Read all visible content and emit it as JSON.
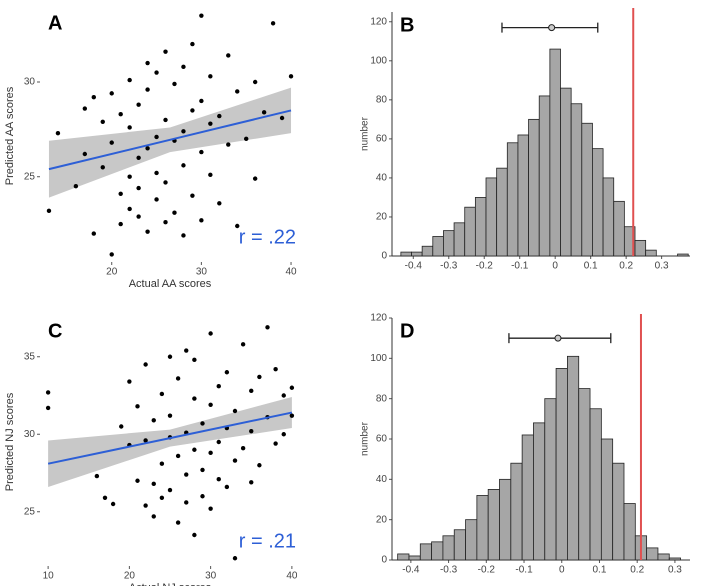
{
  "chart_data": [
    {
      "type": "scatter",
      "label": "A",
      "xlabel": "Actual AA scores",
      "ylabel": "Predicted AA scores",
      "annotation": "r = .22",
      "color": "#000000",
      "fit_color": "#2d5fd6",
      "band_color": "#c8c8c8",
      "x": [
        13,
        14,
        16,
        17,
        17,
        18,
        18,
        19,
        19,
        20,
        20,
        20,
        21,
        21,
        21,
        22,
        22,
        22,
        22,
        23,
        23,
        23,
        23,
        24,
        24,
        24,
        24,
        25,
        25,
        25,
        25,
        26,
        26,
        26,
        26,
        27,
        27,
        27,
        28,
        28,
        28,
        28,
        29,
        29,
        29,
        30,
        30,
        30,
        30,
        31,
        31,
        31,
        32,
        32,
        33,
        33,
        34,
        34,
        35,
        36,
        36,
        37,
        38,
        39,
        40
      ],
      "y": [
        23.2,
        27.3,
        24.5,
        26.2,
        28.6,
        22.0,
        29.2,
        25.5,
        27.9,
        20.9,
        26.8,
        29.4,
        24.1,
        28.3,
        22.5,
        25.0,
        27.6,
        23.3,
        30.1,
        26.0,
        28.8,
        22.9,
        24.4,
        31.0,
        26.5,
        22.1,
        29.6,
        23.8,
        27.1,
        30.5,
        25.2,
        28.0,
        22.6,
        31.6,
        24.7,
        26.9,
        29.9,
        23.1,
        27.4,
        30.8,
        25.6,
        21.9,
        28.5,
        24.0,
        32.0,
        26.3,
        29.0,
        22.7,
        33.5,
        27.8,
        25.1,
        30.3,
        28.2,
        23.6,
        31.4,
        26.7,
        29.5,
        22.4,
        27.0,
        30.0,
        24.9,
        28.4,
        33.1,
        28.1,
        30.3
      ],
      "fit": {
        "x": [
          13,
          26.5,
          40
        ],
        "y": [
          25.4,
          26.95,
          28.5
        ],
        "lower": [
          23.9,
          26.3,
          27.3
        ],
        "upper": [
          26.9,
          27.6,
          29.7
        ]
      },
      "xlim": [
        12,
        41
      ],
      "ylim": [
        20.5,
        33.8
      ],
      "xticks": [
        20,
        30,
        40
      ],
      "yticks": [
        25,
        30
      ]
    },
    {
      "type": "histogram",
      "label": "B",
      "ylabel": "number",
      "color": "#a6a6a6",
      "bins": [
        -0.435,
        -0.405,
        -0.375,
        -0.345,
        -0.315,
        -0.285,
        -0.255,
        -0.225,
        -0.195,
        -0.165,
        -0.135,
        -0.105,
        -0.075,
        -0.045,
        -0.015,
        0.015,
        0.045,
        0.075,
        0.105,
        0.135,
        0.165,
        0.195,
        0.225,
        0.255,
        0.285,
        0.315,
        0.345,
        0.375
      ],
      "counts": [
        2,
        2,
        5,
        10,
        13,
        17,
        25,
        30,
        40,
        45,
        58,
        62,
        70,
        82,
        106,
        86,
        78,
        68,
        55,
        40,
        28,
        15,
        8,
        3,
        0,
        0,
        1
      ],
      "vline": 0.22,
      "vline_color": "#e05050",
      "errorbar": {
        "center": -0.01,
        "low": -0.15,
        "high": 0.12,
        "y": 117
      },
      "xlim": [
        -0.46,
        0.38
      ],
      "ylim": [
        0,
        125
      ],
      "xticks": [
        -0.4,
        -0.3,
        -0.2,
        -0.1,
        0,
        0.1,
        0.2,
        0.3
      ],
      "yticks": [
        0,
        20,
        40,
        60,
        80,
        100,
        120
      ]
    },
    {
      "type": "scatter",
      "label": "C",
      "xlabel": "Actual NJ scores",
      "ylabel": "Predicted NJ scores",
      "annotation": "r = .21",
      "color": "#000000",
      "fit_color": "#2d5fd6",
      "band_color": "#c8c8c8",
      "x": [
        10,
        10,
        16,
        17,
        18,
        19,
        20,
        20,
        21,
        21,
        22,
        22,
        22,
        23,
        23,
        23,
        24,
        24,
        24,
        25,
        25,
        25,
        25,
        26,
        26,
        26,
        27,
        27,
        27,
        27,
        28,
        28,
        28,
        28,
        29,
        29,
        29,
        30,
        30,
        30,
        30,
        31,
        31,
        31,
        32,
        32,
        32,
        33,
        33,
        33,
        34,
        34,
        35,
        35,
        35,
        36,
        36,
        37,
        37,
        38,
        38,
        39,
        39,
        40,
        40
      ],
      "y": [
        32.7,
        31.7,
        27.3,
        25.9,
        25.5,
        30.5,
        29.3,
        33.4,
        27.0,
        31.8,
        25.4,
        29.6,
        34.5,
        26.8,
        30.9,
        24.7,
        28.1,
        32.6,
        25.9,
        29.8,
        35.0,
        26.4,
        31.2,
        28.6,
        33.6,
        24.3,
        30.1,
        27.4,
        35.4,
        25.6,
        29.0,
        32.3,
        23.5,
        34.8,
        27.7,
        30.7,
        26.0,
        36.5,
        28.8,
        31.9,
        25.2,
        33.1,
        29.5,
        27.1,
        34.0,
        30.4,
        26.6,
        22.0,
        31.5,
        28.3,
        35.8,
        29.1,
        32.8,
        26.9,
        30.2,
        33.7,
        28.0,
        36.9,
        31.1,
        29.4,
        34.2,
        32.5,
        30.0,
        33.0,
        31.2
      ],
      "fit": {
        "x": [
          10,
          25,
          40
        ],
        "y": [
          28.1,
          29.75,
          31.4
        ],
        "lower": [
          26.6,
          29.2,
          30.4
        ],
        "upper": [
          29.6,
          30.3,
          32.4
        ]
      },
      "xlim": [
        9,
        41
      ],
      "ylim": [
        21.5,
        37.5
      ],
      "xticks": [
        10,
        20,
        30,
        40
      ],
      "yticks": [
        25,
        30,
        35
      ]
    },
    {
      "type": "histogram",
      "label": "D",
      "ylabel": "number",
      "color": "#a6a6a6",
      "bins": [
        -0.435,
        -0.405,
        -0.375,
        -0.345,
        -0.315,
        -0.285,
        -0.255,
        -0.225,
        -0.195,
        -0.165,
        -0.135,
        -0.105,
        -0.075,
        -0.045,
        -0.015,
        0.015,
        0.045,
        0.075,
        0.105,
        0.135,
        0.165,
        0.195,
        0.225,
        0.255,
        0.285,
        0.315
      ],
      "counts": [
        3,
        2,
        8,
        9,
        12,
        15,
        20,
        32,
        35,
        40,
        48,
        62,
        68,
        80,
        95,
        101,
        85,
        75,
        60,
        48,
        28,
        12,
        6,
        3,
        1
      ],
      "vline": 0.21,
      "vline_color": "#e05050",
      "errorbar": {
        "center": -0.01,
        "low": -0.14,
        "high": 0.13,
        "y": 110
      },
      "xlim": [
        -0.45,
        0.34
      ],
      "ylim": [
        0,
        120
      ],
      "xticks": [
        -0.4,
        -0.3,
        -0.2,
        -0.1,
        0,
        0.1,
        0.2,
        0.3
      ],
      "yticks": [
        0,
        20,
        40,
        60,
        80,
        100,
        120
      ]
    }
  ]
}
